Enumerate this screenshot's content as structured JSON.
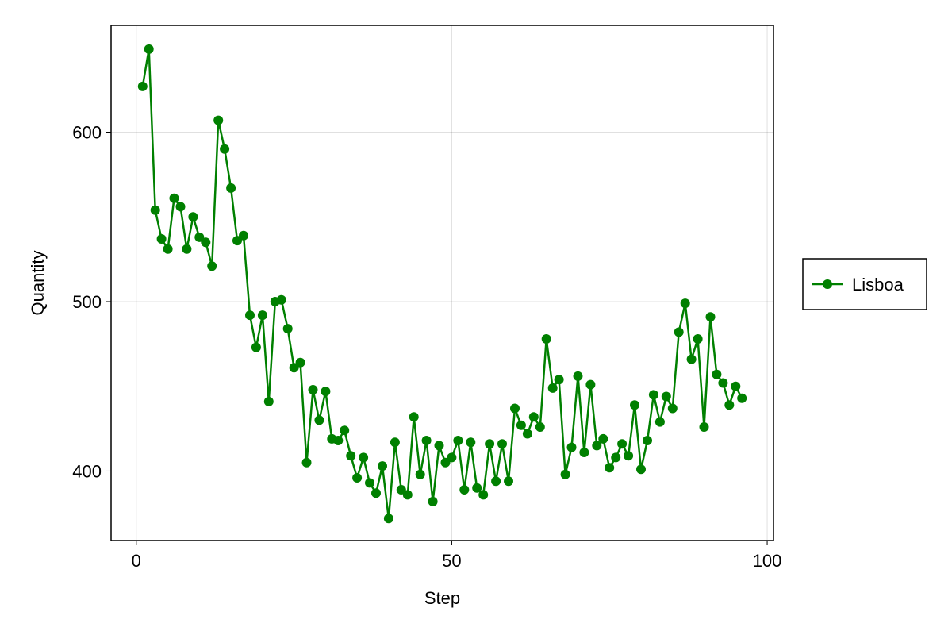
{
  "chart_data": {
    "type": "line",
    "title": "",
    "xlabel": "Step",
    "ylabel": "Quantity",
    "xlim": [
      -4,
      101
    ],
    "ylim": [
      359,
      663
    ],
    "xticks": [
      0,
      50,
      100
    ],
    "yticks": [
      400,
      500,
      600
    ],
    "grid": true,
    "legend_position": "right",
    "series": [
      {
        "name": "Lisboa",
        "color": "#008000",
        "marker": "circle",
        "x": [
          1,
          2,
          3,
          4,
          5,
          6,
          7,
          8,
          9,
          10,
          11,
          12,
          13,
          14,
          15,
          16,
          17,
          18,
          19,
          20,
          21,
          22,
          23,
          24,
          25,
          26,
          27,
          28,
          29,
          30,
          31,
          32,
          33,
          34,
          35,
          36,
          37,
          38,
          39,
          40,
          41,
          42,
          43,
          44,
          45,
          46,
          47,
          48,
          49,
          50,
          51,
          52,
          53,
          54,
          55,
          56,
          57,
          58,
          59,
          60,
          61,
          62,
          63,
          64,
          65,
          66,
          67,
          68,
          69,
          70,
          71,
          72,
          73,
          74,
          75,
          76,
          77,
          78,
          79,
          80,
          81,
          82,
          83,
          84,
          85,
          86,
          87,
          88,
          89,
          90,
          91,
          92,
          93,
          94,
          95,
          96
        ],
        "y": [
          627,
          649,
          554,
          537,
          531,
          561,
          556,
          531,
          550,
          538,
          535,
          521,
          607,
          590,
          567,
          536,
          539,
          492,
          473,
          492,
          441,
          500,
          501,
          484,
          461,
          464,
          405,
          448,
          430,
          447,
          419,
          418,
          424,
          409,
          396,
          408,
          393,
          387,
          403,
          372,
          417,
          389,
          386,
          432,
          398,
          418,
          382,
          415,
          405,
          408,
          418,
          389,
          417,
          390,
          386,
          416,
          394,
          416,
          394,
          437,
          427,
          422,
          432,
          426,
          478,
          449,
          454,
          398,
          414,
          456,
          411,
          451,
          415,
          419,
          402,
          408,
          416,
          409,
          439,
          401,
          418,
          445,
          429,
          444,
          437,
          482,
          499,
          466,
          478,
          426,
          491,
          457,
          452,
          439,
          450,
          443
        ]
      }
    ]
  }
}
